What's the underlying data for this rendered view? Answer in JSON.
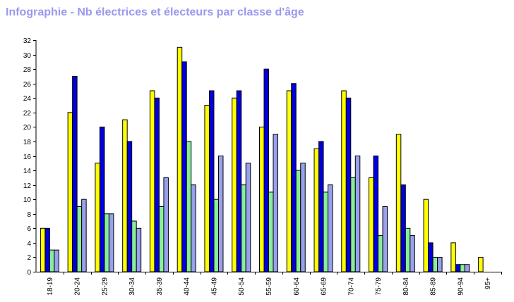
{
  "chart_data": {
    "type": "bar",
    "title": "Infographie - Nb électrices et électeurs par classe d'âge",
    "categories": [
      "18-19",
      "20-24",
      "25-29",
      "30-34",
      "35-39",
      "40-44",
      "45-49",
      "50-54",
      "55-59",
      "60-64",
      "65-69",
      "70-74",
      "75-79",
      "80-84",
      "85-89",
      "90-94",
      "95+"
    ],
    "series": [
      {
        "color": "#ffff00",
        "values": [
          6,
          22,
          15,
          21,
          25,
          31,
          23,
          24,
          20,
          25,
          17,
          25,
          13,
          19,
          10,
          4,
          2
        ]
      },
      {
        "color": "#0000dd",
        "values": [
          6,
          27,
          20,
          18,
          24,
          29,
          25,
          25,
          28,
          26,
          18,
          24,
          16,
          12,
          4,
          1,
          0
        ]
      },
      {
        "color": "#88ee99",
        "values": [
          3,
          9,
          8,
          7,
          9,
          18,
          10,
          12,
          11,
          14,
          11,
          13,
          5,
          6,
          2,
          1,
          0
        ]
      },
      {
        "color": "#99a0ee",
        "values": [
          3,
          10,
          8,
          6,
          13,
          12,
          16,
          15,
          19,
          15,
          12,
          16,
          9,
          5,
          2,
          1,
          0
        ]
      }
    ],
    "ylim": [
      0,
      32
    ],
    "yticks": [
      0,
      2,
      4,
      6,
      8,
      10,
      12,
      14,
      16,
      18,
      20,
      22,
      24,
      26,
      28,
      30,
      32
    ],
    "grid": false,
    "legend": "none"
  }
}
